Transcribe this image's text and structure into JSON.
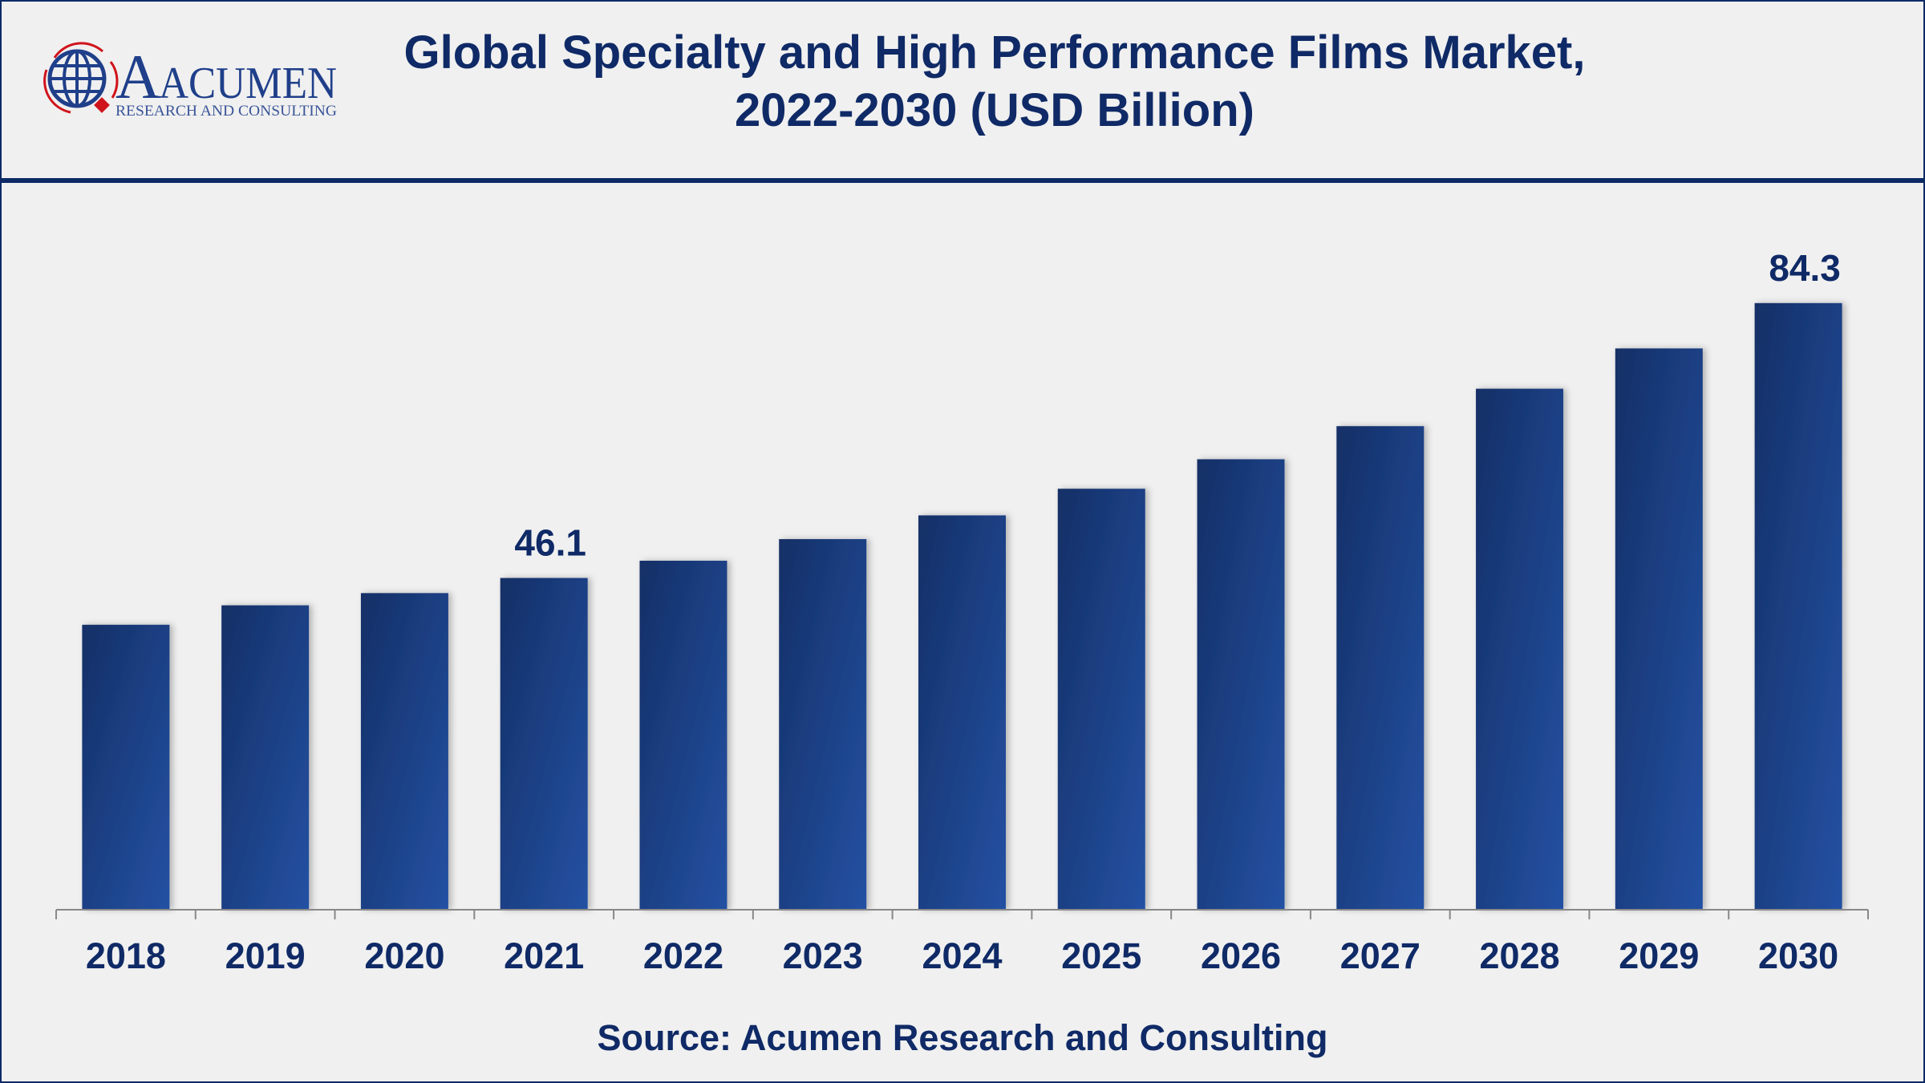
{
  "title_line1": "Global Specialty and High Performance Films Market,",
  "title_line2": "2022-2030 (USD Billion)",
  "logo": {
    "name": "ACUMEN",
    "tagline": "RESEARCH AND CONSULTING"
  },
  "source": "Source: Acumen Research and Consulting",
  "colors": {
    "bar": "#1f4690",
    "bar_dark": "#142f66",
    "text": "#0f2a66",
    "accent_red": "#d0141c"
  },
  "chart_data": {
    "type": "bar",
    "title": "Global Specialty and High Performance Films Market, 2022-2030 (USD Billion)",
    "categories": [
      "2018",
      "2019",
      "2020",
      "2021",
      "2022",
      "2023",
      "2024",
      "2025",
      "2026",
      "2027",
      "2028",
      "2029",
      "2030"
    ],
    "values": [
      39.6,
      42.3,
      44.0,
      46.1,
      48.5,
      51.5,
      54.8,
      58.5,
      62.6,
      67.2,
      72.4,
      78.0,
      84.3
    ],
    "data_labels": {
      "2021": "46.1",
      "2030": "84.3"
    },
    "xlabel": "",
    "ylabel": "",
    "ylim": [
      0,
      90
    ],
    "grid": false,
    "legend": "none"
  }
}
